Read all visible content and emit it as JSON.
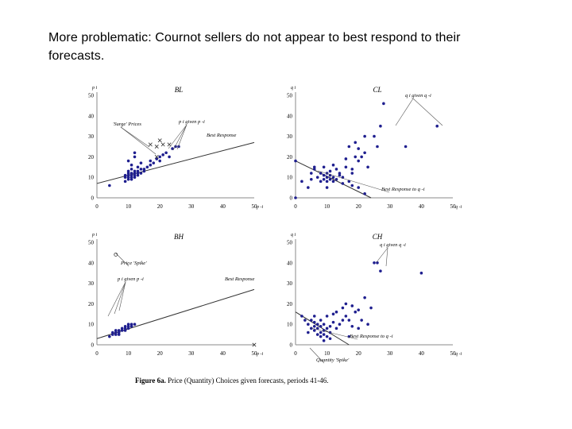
{
  "title": {
    "line1": "More problematic: Cournot sellers do not appear to best respond to their",
    "line2": "forecasts."
  },
  "caption": {
    "bold": "Figure 6a.",
    "text": " Price (Quantity) Choices given forecasts, periods 41-46."
  },
  "colors": {
    "points": "#1f1f8f",
    "line": "#333333",
    "axis": "#888888",
    "cross": "#333333"
  },
  "chart_data": [
    {
      "id": "BL",
      "type": "scatter",
      "title": "BL",
      "ylabel": "p i",
      "xlabel": "p -i",
      "xlim": [
        0,
        50
      ],
      "ylim": [
        0,
        50
      ],
      "xticks": [
        "0",
        "10",
        "20",
        "30",
        "40",
        "50"
      ],
      "yticks": [
        "0",
        "10",
        "20",
        "30",
        "40",
        "50"
      ],
      "best_response": {
        "x": [
          0,
          50
        ],
        "y": [
          7,
          27
        ],
        "label": "Best Response"
      },
      "series": [
        {
          "name": "p i given p -i",
          "points": [
            [
              4,
              6
            ],
            [
              9,
              8
            ],
            [
              9,
              10
            ],
            [
              9,
              11
            ],
            [
              10,
              9
            ],
            [
              10,
              10
            ],
            [
              10,
              11
            ],
            [
              10,
              12
            ],
            [
              10,
              13
            ],
            [
              11,
              9
            ],
            [
              11,
              10
            ],
            [
              11,
              12
            ],
            [
              11,
              14
            ],
            [
              11,
              11
            ],
            [
              12,
              10
            ],
            [
              12,
              12
            ],
            [
              12,
              13
            ],
            [
              12,
              11
            ],
            [
              13,
              11
            ],
            [
              13,
              12
            ],
            [
              13,
              13
            ],
            [
              13,
              15
            ],
            [
              14,
              12
            ],
            [
              14,
              14
            ],
            [
              15,
              13
            ],
            [
              15,
              14
            ],
            [
              16,
              15
            ],
            [
              17,
              16
            ],
            [
              17,
              18
            ],
            [
              18,
              17
            ],
            [
              19,
              19
            ],
            [
              20,
              18
            ],
            [
              20,
              20
            ],
            [
              21,
              21
            ],
            [
              22,
              22
            ],
            [
              23,
              20
            ],
            [
              24,
              24
            ],
            [
              25,
              25
            ],
            [
              26,
              25
            ],
            [
              10,
              18
            ],
            [
              11,
              16
            ],
            [
              12,
              22
            ],
            [
              14,
              17
            ],
            [
              12,
              20
            ]
          ]
        },
        {
          "name": "Surge Prices",
          "points": [
            [
              17,
              26
            ],
            [
              19,
              25
            ],
            [
              20,
              28
            ],
            [
              21,
              26
            ],
            [
              23,
              26
            ],
            [
              19,
              20
            ]
          ]
        }
      ],
      "annotations": [
        {
          "text": "'Surge' Prices"
        },
        {
          "text": "p i given p -i"
        },
        {
          "text": "Best Response"
        }
      ]
    },
    {
      "id": "CL",
      "type": "scatter",
      "title": "CL",
      "ylabel": "q i",
      "xlabel": "q -i",
      "xlim": [
        0,
        50
      ],
      "ylim": [
        0,
        50
      ],
      "xticks": [
        "0",
        "10",
        "20",
        "30",
        "40",
        "50"
      ],
      "yticks": [
        "0",
        "10",
        "20",
        "30",
        "40",
        "50"
      ],
      "best_response": {
        "x": [
          0,
          24
        ],
        "y": [
          18,
          0
        ],
        "label": "Best Response to q -i"
      },
      "series": [
        {
          "name": "q i given q -i",
          "points": [
            [
              0,
              0
            ],
            [
              0,
              18
            ],
            [
              2,
              8
            ],
            [
              4,
              5
            ],
            [
              5,
              9
            ],
            [
              5,
              12
            ],
            [
              6,
              14
            ],
            [
              7,
              10
            ],
            [
              8,
              8
            ],
            [
              8,
              12
            ],
            [
              9,
              9
            ],
            [
              9,
              11
            ],
            [
              10,
              8
            ],
            [
              10,
              10
            ],
            [
              10,
              12
            ],
            [
              11,
              9
            ],
            [
              11,
              11
            ],
            [
              11,
              13
            ],
            [
              12,
              10
            ],
            [
              12,
              8
            ],
            [
              13,
              14
            ],
            [
              13,
              9
            ],
            [
              14,
              11
            ],
            [
              14,
              12
            ],
            [
              15,
              10
            ],
            [
              15,
              7
            ],
            [
              16,
              19
            ],
            [
              16,
              15
            ],
            [
              17,
              8
            ],
            [
              17,
              25
            ],
            [
              18,
              12
            ],
            [
              18,
              6
            ],
            [
              18,
              14
            ],
            [
              19,
              20
            ],
            [
              19,
              27
            ],
            [
              20,
              18
            ],
            [
              20,
              5
            ],
            [
              21,
              20
            ],
            [
              22,
              30
            ],
            [
              22,
              2
            ],
            [
              23,
              15
            ],
            [
              25,
              30
            ],
            [
              26,
              25
            ],
            [
              27,
              35
            ],
            [
              28,
              46
            ],
            [
              35,
              25
            ],
            [
              45,
              35
            ],
            [
              6,
              15
            ],
            [
              9,
              15
            ],
            [
              10,
              5
            ],
            [
              12,
              16
            ],
            [
              20,
              24
            ],
            [
              22,
              22
            ]
          ]
        }
      ],
      "annotations": [
        {
          "text": "q i given q -i"
        },
        {
          "text": "Best Response to q -i"
        }
      ]
    },
    {
      "id": "BH",
      "type": "scatter",
      "title": "BH",
      "ylabel": "p i",
      "xlabel": "p -i",
      "xlim": [
        0,
        50
      ],
      "ylim": [
        0,
        50
      ],
      "xticks": [
        "0",
        "10",
        "20",
        "30",
        "40",
        "50"
      ],
      "yticks": [
        "0",
        "10",
        "20",
        "30",
        "40",
        "50"
      ],
      "best_response": {
        "x": [
          0,
          50
        ],
        "y": [
          3,
          27
        ],
        "label": "Best Response"
      },
      "series": [
        {
          "name": "p i given p -i",
          "points": [
            [
              4,
              4
            ],
            [
              5,
              5
            ],
            [
              5,
              6
            ],
            [
              6,
              5
            ],
            [
              6,
              6
            ],
            [
              6,
              7
            ],
            [
              7,
              6
            ],
            [
              7,
              7
            ],
            [
              8,
              7
            ],
            [
              8,
              8
            ],
            [
              9,
              8
            ],
            [
              9,
              9
            ],
            [
              10,
              8
            ],
            [
              10,
              9
            ],
            [
              11,
              10
            ],
            [
              11,
              9
            ],
            [
              12,
              10
            ],
            [
              7,
              5
            ],
            [
              9,
              7
            ],
            [
              10,
              10
            ]
          ]
        },
        {
          "name": "Price Spike",
          "points": [
            [
              6,
              44
            ],
            [
              50,
              0
            ]
          ]
        }
      ],
      "annotations": [
        {
          "text": "Price 'Spike'"
        },
        {
          "text": "p i given p -i"
        },
        {
          "text": "Best Response"
        }
      ]
    },
    {
      "id": "CH",
      "type": "scatter",
      "title": "CH",
      "ylabel": "q i",
      "xlabel": "q -i",
      "xlim": [
        0,
        50
      ],
      "ylim": [
        0,
        50
      ],
      "xticks": [
        "0",
        "10",
        "20",
        "30",
        "40",
        "50"
      ],
      "yticks": [
        "0",
        "10",
        "20",
        "30",
        "40",
        "50"
      ],
      "best_response": {
        "x": [
          0,
          17
        ],
        "y": [
          16,
          0
        ],
        "label": "Best Response to q -i"
      },
      "series": [
        {
          "name": "q i given q -i",
          "points": [
            [
              2,
              14
            ],
            [
              3,
              12
            ],
            [
              4,
              6
            ],
            [
              4,
              10
            ],
            [
              5,
              8
            ],
            [
              5,
              12
            ],
            [
              6,
              7
            ],
            [
              6,
              9
            ],
            [
              6,
              11
            ],
            [
              7,
              5
            ],
            [
              7,
              8
            ],
            [
              7,
              10
            ],
            [
              8,
              6
            ],
            [
              8,
              9
            ],
            [
              8,
              12
            ],
            [
              9,
              5
            ],
            [
              9,
              7
            ],
            [
              9,
              10
            ],
            [
              10,
              4
            ],
            [
              10,
              8
            ],
            [
              10,
              14
            ],
            [
              11,
              6
            ],
            [
              11,
              9
            ],
            [
              12,
              11
            ],
            [
              12,
              15
            ],
            [
              13,
              8
            ],
            [
              13,
              16
            ],
            [
              14,
              10
            ],
            [
              15,
              18
            ],
            [
              15,
              12
            ],
            [
              16,
              20
            ],
            [
              16,
              14
            ],
            [
              17,
              12
            ],
            [
              18,
              19
            ],
            [
              18,
              9
            ],
            [
              19,
              16
            ],
            [
              20,
              8
            ],
            [
              20,
              17
            ],
            [
              21,
              12
            ],
            [
              22,
              23
            ],
            [
              23,
              10
            ],
            [
              24,
              18
            ],
            [
              25,
              40
            ],
            [
              26,
              40
            ],
            [
              27,
              36
            ],
            [
              40,
              35
            ],
            [
              6,
              14
            ],
            [
              8,
              4
            ],
            [
              9,
              2
            ],
            [
              11,
              3
            ],
            [
              17,
              4
            ]
          ]
        }
      ],
      "annotations": [
        {
          "text": "q i given q -i"
        },
        {
          "text": "Best Response to q -i"
        },
        {
          "text": "Quantity 'Spike'"
        }
      ]
    }
  ]
}
